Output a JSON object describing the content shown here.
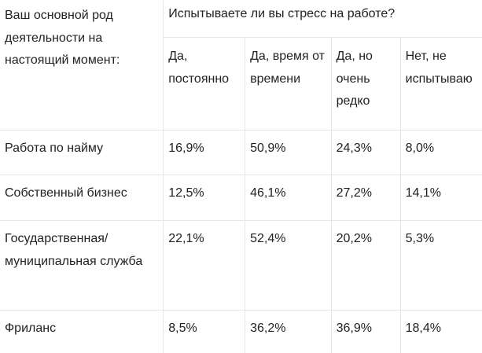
{
  "table": {
    "corner_header": "Ваш основной род деятельности на настоящий момент:",
    "question_header": "Испытываете ли вы стресс на работе?",
    "answers": [
      "Да, постоянно",
      "Да, время от времени",
      "Да, но очень редко",
      "Нет, не испытываю"
    ],
    "rows": [
      {
        "label": "Работа по найму",
        "values": [
          "16,9%",
          "50,9%",
          "24,3%",
          "8,0%"
        ]
      },
      {
        "label": "Собственный бизнес",
        "values": [
          "12,5%",
          "46,1%",
          "27,2%",
          "14,1%"
        ]
      },
      {
        "label": "Государственная/ муниципальная служба",
        "values": [
          "22,1%",
          "52,4%",
          "20,2%",
          "5,3%"
        ]
      },
      {
        "label": "Фриланс",
        "values": [
          "8,5%",
          "36,2%",
          "36,9%",
          "18,4%"
        ]
      }
    ]
  }
}
